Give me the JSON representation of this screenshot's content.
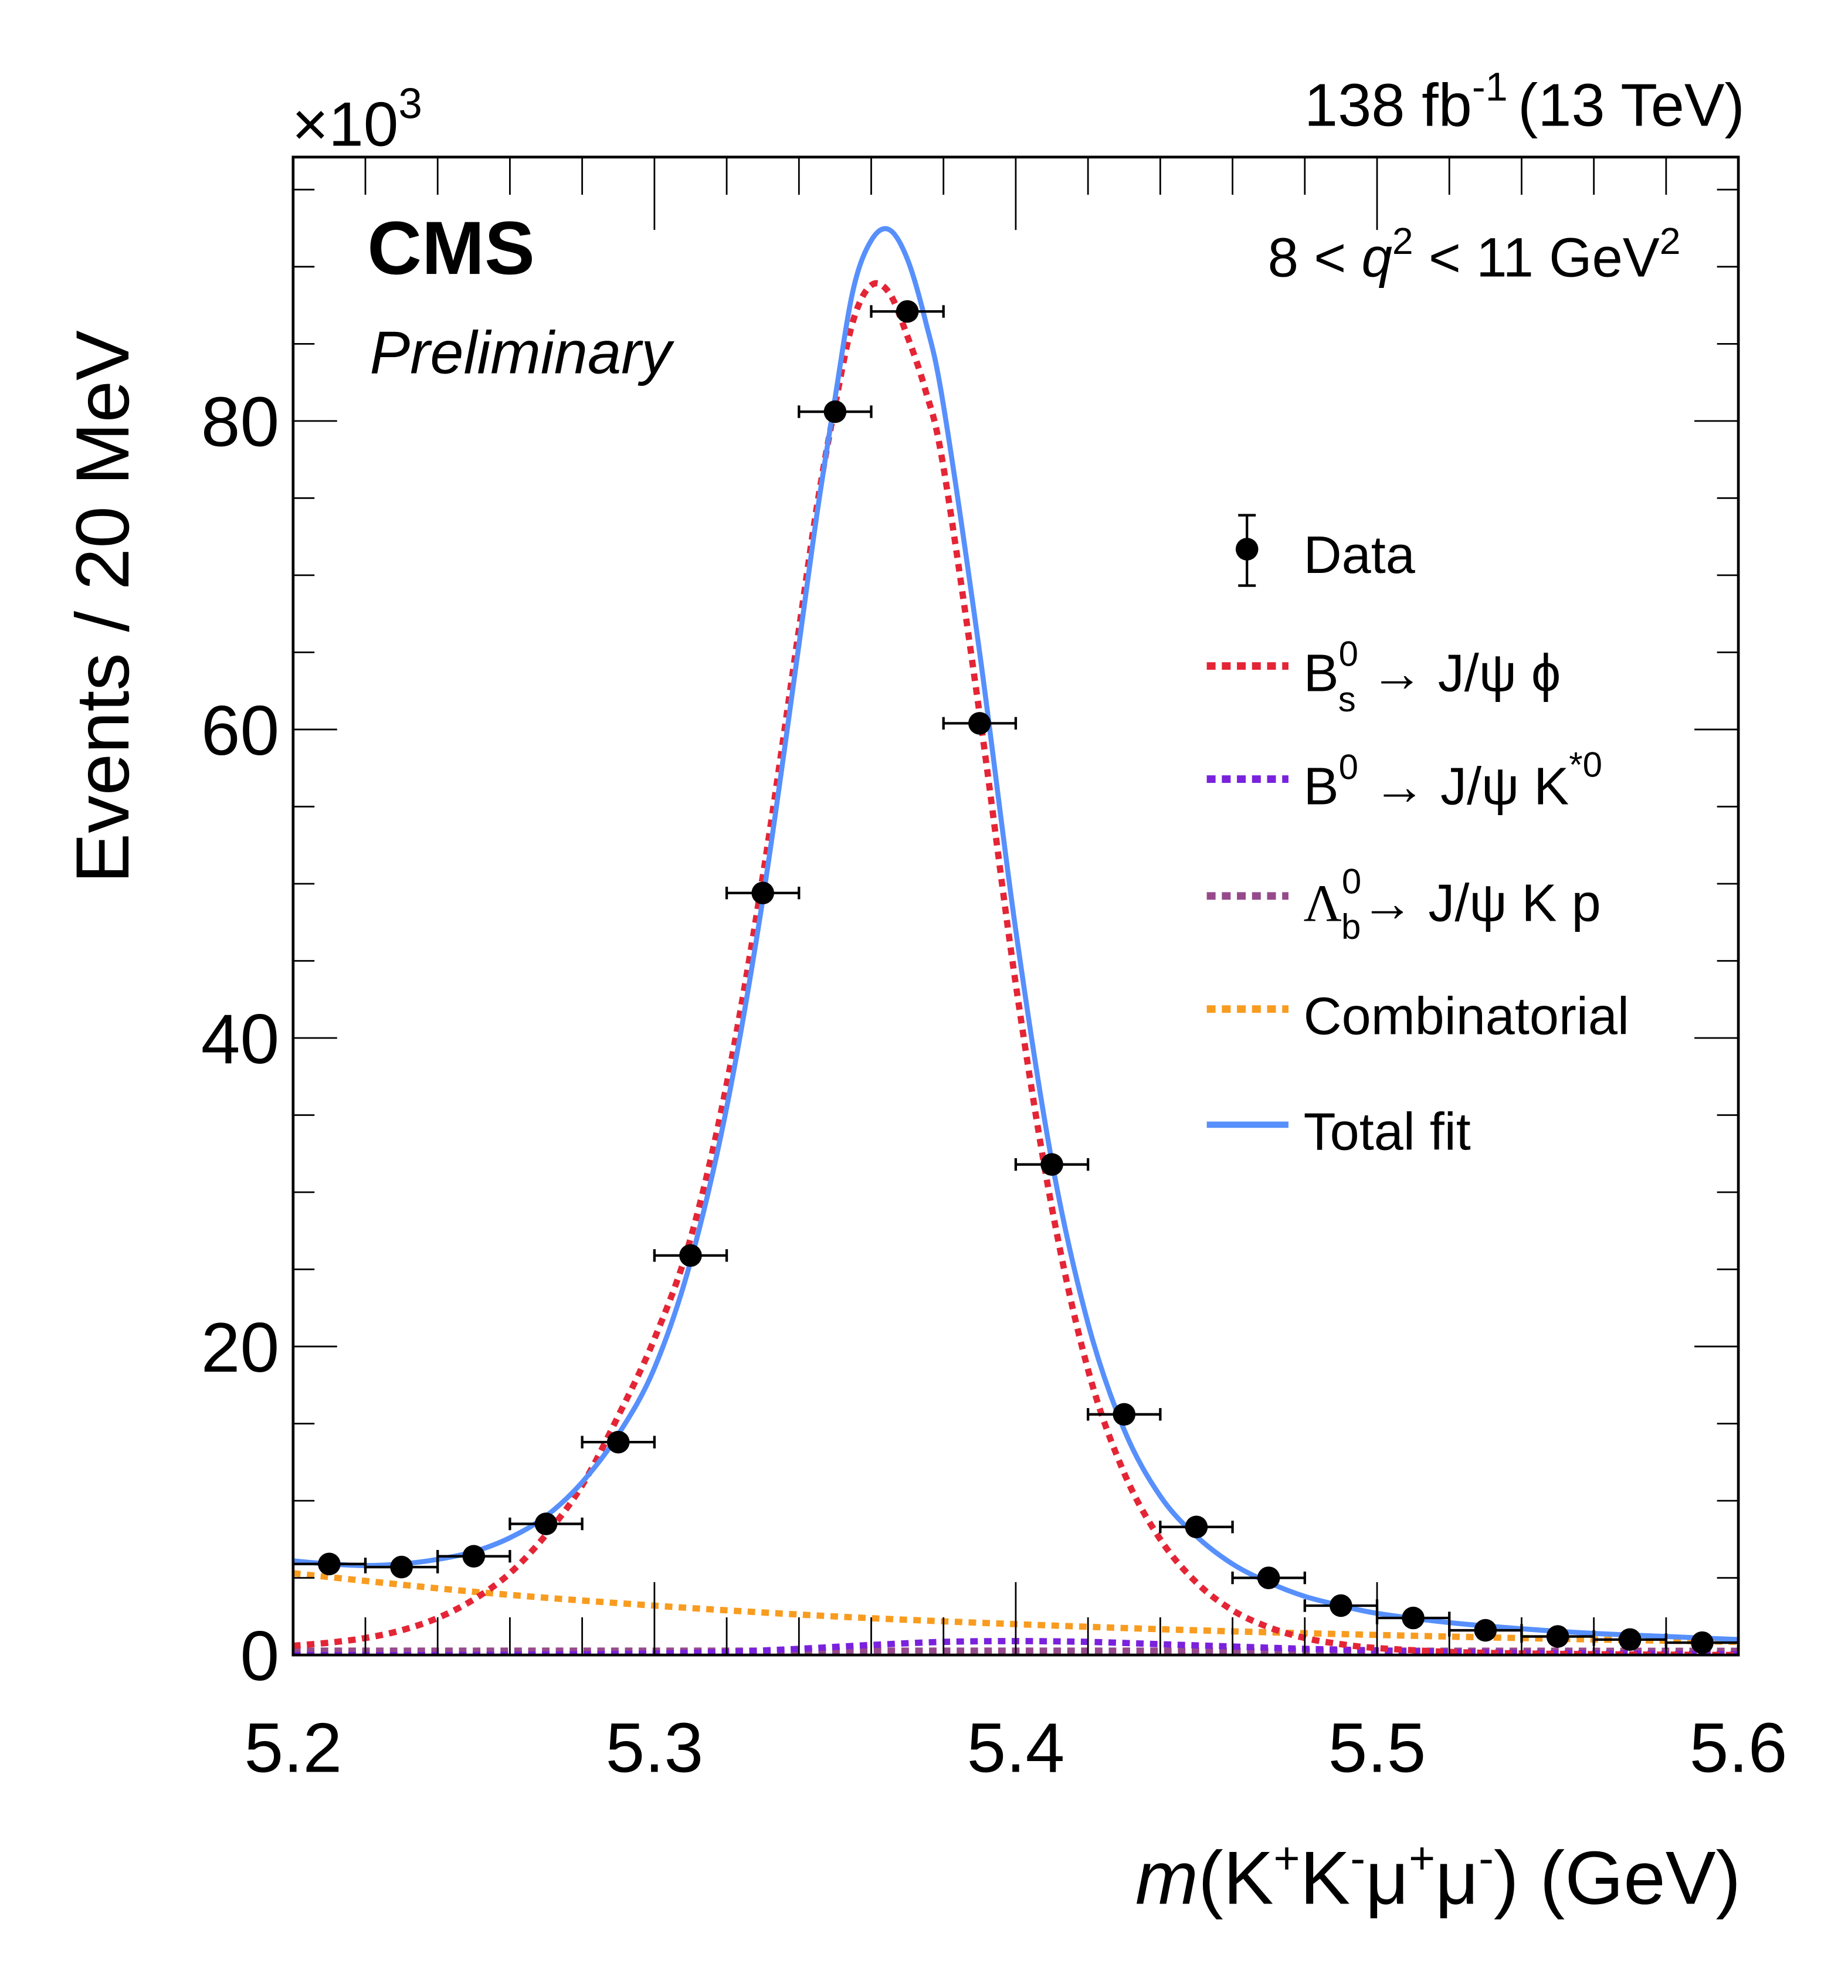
{
  "chart_data": {
    "type": "line",
    "title": "",
    "experiment": "CMS",
    "experiment_status": "Preliminary",
    "luminosity_label": "138 fb",
    "luminosity_superscript": "-1",
    "energy_label": "(13 TeV)",
    "selection_label": {
      "prefix": "8 < ",
      "variable": "q",
      "variable_sup": "2",
      "suffix": " < 11 GeV",
      "suffix_sup": "2"
    },
    "xlabel": {
      "italic": "m",
      "text": "(K",
      "parts": [
        {
          "t": "(K",
          "sup": "+"
        },
        {
          "t": "K",
          "sup": "-"
        },
        {
          "t": "μ",
          "sup": "+"
        },
        {
          "t": "μ",
          "sup": "-"
        },
        {
          "t": ") (GeV)",
          "sup": ""
        }
      ]
    },
    "ylabel": "Events / 20 MeV",
    "y_multiplier": "×10",
    "y_multiplier_exp": "3",
    "xlim": [
      5.2,
      5.6
    ],
    "ylim": [
      0,
      97
    ],
    "y_unit_scale": 1000,
    "x_ticks": [
      "5.2",
      "5.3",
      "5.4",
      "5.5",
      "5.6"
    ],
    "x_tick_values": [
      5.2,
      5.3,
      5.4,
      5.5,
      5.6
    ],
    "y_ticks": [
      "0",
      "20",
      "40",
      "60",
      "80"
    ],
    "y_tick_values": [
      0,
      20,
      40,
      60,
      80
    ],
    "grid": false,
    "legend_position": "right",
    "legend": [
      {
        "key": "data",
        "label": "Data",
        "style": "marker"
      },
      {
        "key": "bs",
        "label_main": "B",
        "sup": "0",
        "sub": "s",
        "label_rest": " → J/ψ ϕ",
        "style": "dotted",
        "color": "#e42536"
      },
      {
        "key": "b0",
        "label_main": "B",
        "sup": "0",
        "sub": "",
        "label_rest": " → J/ψ K",
        "rest_sup": "*0",
        "style": "dotted",
        "color": "#7a21dd"
      },
      {
        "key": "lb",
        "label_main": "Λ",
        "sup": "0",
        "sub": "b",
        "label_rest": "→ J/ψ K p",
        "style": "dotted",
        "color": "#964a8b"
      },
      {
        "key": "comb",
        "label_main": "Combinatorial",
        "style": "dotted",
        "color": "#f89c20"
      },
      {
        "key": "total",
        "label_main": "Total fit",
        "style": "solid",
        "color": "#5790fc"
      }
    ],
    "data_points": {
      "name": "Data",
      "x": [
        5.21,
        5.23,
        5.25,
        5.27,
        5.29,
        5.31,
        5.33,
        5.35,
        5.37,
        5.39,
        5.41,
        5.43,
        5.45,
        5.47,
        5.49,
        5.51,
        5.53,
        5.55,
        5.57,
        5.59
      ],
      "y": [
        5.9,
        5.7,
        6.4,
        8.5,
        13.8,
        25.9,
        49.4,
        80.6,
        87.1,
        60.4,
        31.8,
        15.6,
        8.3,
        5.0,
        3.2,
        2.4,
        1.6,
        1.2,
        1.0,
        0.8
      ],
      "x_err": 0.01
    },
    "series": [
      {
        "name": "Total fit",
        "key": "total",
        "color": "#5790fc",
        "x": [
          5.2,
          5.21,
          5.22,
          5.23,
          5.24,
          5.25,
          5.26,
          5.27,
          5.28,
          5.29,
          5.3,
          5.31,
          5.32,
          5.33,
          5.34,
          5.345,
          5.35,
          5.355,
          5.36,
          5.365,
          5.37,
          5.375,
          5.38,
          5.39,
          5.4,
          5.41,
          5.42,
          5.43,
          5.44,
          5.45,
          5.46,
          5.47,
          5.48,
          5.49,
          5.5,
          5.52,
          5.54,
          5.56,
          5.58,
          5.6
        ],
        "y": [
          6.1,
          5.9,
          5.8,
          5.9,
          6.2,
          6.7,
          7.6,
          9.0,
          11.2,
          14.3,
          18.6,
          25.5,
          35.5,
          49.0,
          65.5,
          74.0,
          81.5,
          88.5,
          91.7,
          92.4,
          90.5,
          86.5,
          81.0,
          65.0,
          47.0,
          32.0,
          21.5,
          14.6,
          10.3,
          7.7,
          5.9,
          4.7,
          3.8,
          3.2,
          2.7,
          2.1,
          1.7,
          1.4,
          1.2,
          1.0
        ]
      },
      {
        "name": "Bs0 → J/ψ ϕ",
        "key": "bs",
        "color": "#e42536",
        "x": [
          5.2,
          5.21,
          5.22,
          5.23,
          5.24,
          5.25,
          5.26,
          5.27,
          5.28,
          5.29,
          5.3,
          5.31,
          5.32,
          5.33,
          5.34,
          5.345,
          5.35,
          5.355,
          5.36,
          5.365,
          5.37,
          5.375,
          5.38,
          5.39,
          5.4,
          5.41,
          5.42,
          5.43,
          5.44,
          5.45,
          5.46,
          5.47,
          5.48,
          5.49,
          5.5,
          5.52,
          5.54,
          5.56,
          5.58,
          5.6
        ],
        "y": [
          0.6,
          0.8,
          1.1,
          1.6,
          2.4,
          3.6,
          5.3,
          7.8,
          11.0,
          15.5,
          20.5,
          27.0,
          37.0,
          50.5,
          66.5,
          74.5,
          81.0,
          86.5,
          88.8,
          88.3,
          85.5,
          82.0,
          77.0,
          61.0,
          43.5,
          29.0,
          18.5,
          11.8,
          7.5,
          4.7,
          2.9,
          1.8,
          1.1,
          0.7,
          0.45,
          0.2,
          0.1,
          0.05,
          0.02,
          0.0
        ]
      },
      {
        "name": "B0 → J/ψ K*0",
        "key": "b0",
        "color": "#7a21dd",
        "x": [
          5.2,
          5.24,
          5.28,
          5.3,
          5.32,
          5.34,
          5.36,
          5.38,
          5.4,
          5.42,
          5.44,
          5.46,
          5.48,
          5.5,
          5.52,
          5.55,
          5.6
        ],
        "y": [
          0.0,
          0.0,
          0.05,
          0.1,
          0.2,
          0.4,
          0.65,
          0.85,
          0.9,
          0.85,
          0.7,
          0.55,
          0.4,
          0.3,
          0.2,
          0.12,
          0.05
        ]
      },
      {
        "name": "Λb0 → J/ψ K p",
        "key": "lb",
        "color": "#964a8b",
        "x": [
          5.2,
          5.3,
          5.4,
          5.5,
          5.6
        ],
        "y": [
          0.28,
          0.28,
          0.28,
          0.28,
          0.27
        ]
      },
      {
        "name": "Combinatorial",
        "key": "comb",
        "color": "#f89c20",
        "x": [
          5.2,
          5.25,
          5.3,
          5.35,
          5.4,
          5.45,
          5.5,
          5.55,
          5.6
        ],
        "y": [
          5.3,
          4.1,
          3.2,
          2.5,
          2.0,
          1.6,
          1.3,
          1.05,
          0.85
        ]
      }
    ]
  }
}
